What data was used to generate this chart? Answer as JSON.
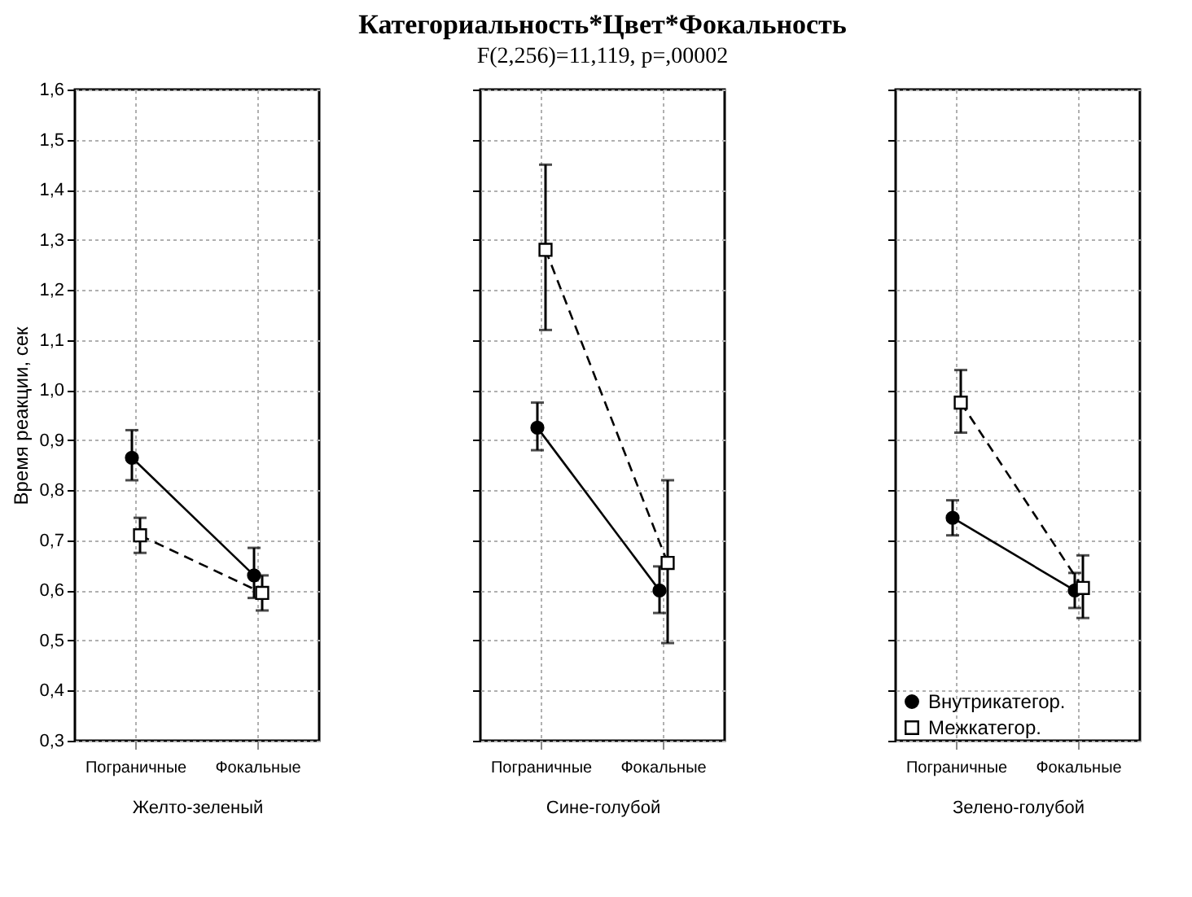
{
  "chart_data": [
    {
      "type": "line",
      "xlabel": "Желто-зеленый",
      "ylabel": "Время реакции, сек",
      "categories": [
        "Пограничные",
        "Фокальные"
      ],
      "ylim": [
        0.3,
        1.6
      ],
      "yticks": [
        {
          "value": 0.3,
          "label": "0,3"
        },
        {
          "value": 0.4,
          "label": "0,4"
        },
        {
          "value": 0.5,
          "label": "0,5"
        },
        {
          "value": 0.6,
          "label": "0,6"
        },
        {
          "value": 0.7,
          "label": "0,7"
        },
        {
          "value": 0.8,
          "label": "0,8"
        },
        {
          "value": 0.9,
          "label": "0,9"
        },
        {
          "value": 1.0,
          "label": "1,0"
        },
        {
          "value": 1.1,
          "label": "1,1"
        },
        {
          "value": 1.2,
          "label": "1,2"
        },
        {
          "value": 1.3,
          "label": "1,3"
        },
        {
          "value": 1.4,
          "label": "1,4"
        },
        {
          "value": 1.5,
          "label": "1,5"
        },
        {
          "value": 1.6,
          "label": "1,6"
        }
      ],
      "grid": true,
      "legend": "bottom right",
      "series": [
        {
          "name": "Внутрикатегор.",
          "color": "#000000",
          "marker": "circle",
          "line_style": "solid",
          "values": [
            0.865,
            0.63
          ],
          "errors": [
            [
              0.82,
              0.92
            ],
            [
              0.585,
              0.685
            ]
          ]
        },
        {
          "name": "Межкатегор.",
          "color": "#000000",
          "marker": "square",
          "line_style": "dashed",
          "values": [
            0.71,
            0.595
          ],
          "errors": [
            [
              0.675,
              0.745
            ],
            [
              0.56,
              0.63
            ]
          ]
        }
      ]
    },
    {
      "type": "line",
      "title": "Категориальность*Цвет*Фокальность",
      "subtitle": "F(2,256)=11,119, p=,00002",
      "xlabel": "Сине-голубой",
      "categories": [
        "Пограничные",
        "Фокальные"
      ],
      "ylim": [
        0.3,
        1.6
      ],
      "tick_labels": "x",
      "grid": true,
      "series": [
        {
          "color": "#000000",
          "marker": "circle",
          "line_style": "solid",
          "values": [
            0.925,
            0.6
          ],
          "errors": [
            [
              0.88,
              0.975
            ],
            [
              0.555,
              0.648
            ]
          ]
        },
        {
          "color": "#000000",
          "marker": "square",
          "line_style": "dashed",
          "values": [
            1.28,
            0.655
          ],
          "errors": [
            [
              1.12,
              1.45
            ],
            [
              0.495,
              0.82
            ]
          ]
        }
      ]
    },
    {
      "type": "line",
      "xlabel": "Зелено-голубой",
      "categories": [
        "Пограничные",
        "Фокальные"
      ],
      "ylim": [
        0.3,
        1.6
      ],
      "tick_labels": "x",
      "grid": true,
      "series": [
        {
          "color": "#000000",
          "marker": "circle",
          "line_style": "solid",
          "values": [
            0.745,
            0.6
          ],
          "errors": [
            [
              0.71,
              0.78
            ],
            [
              0.565,
              0.635
            ]
          ]
        },
        {
          "color": "#000000",
          "marker": "square",
          "line_style": "dashed",
          "values": [
            0.975,
            0.605
          ],
          "errors": [
            [
              0.915,
              1.04
            ],
            [
              0.545,
              0.67
            ]
          ]
        }
      ]
    }
  ]
}
